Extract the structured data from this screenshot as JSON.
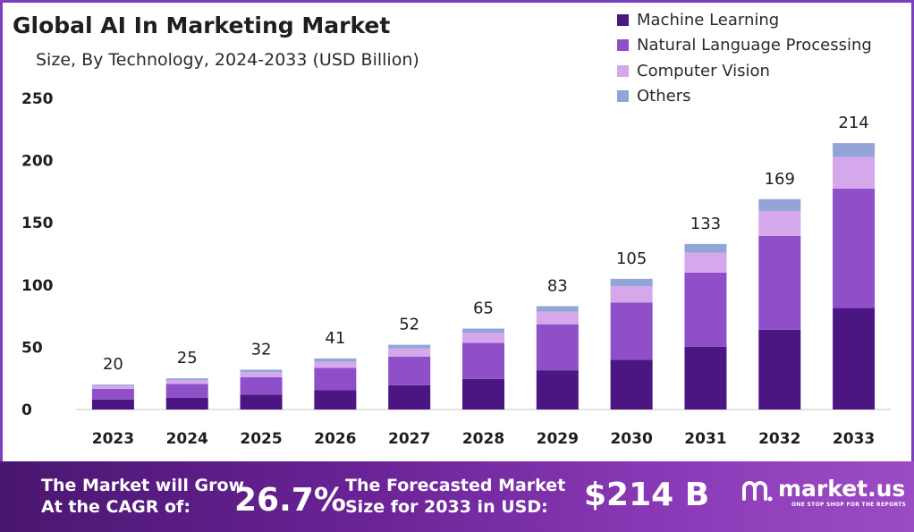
{
  "header": {
    "title": "Global AI In Marketing  Market",
    "subtitle": "Size, By Technology, 2024-2033 (USD Billion)"
  },
  "chart_data": {
    "type": "bar",
    "stacked": true,
    "title": "Global AI In Marketing  Market",
    "subtitle": "Size, By Technology, 2024-2033 (USD Billion)",
    "xlabel": "",
    "ylabel": "",
    "ylim": [
      0,
      250
    ],
    "yticks": [
      0,
      50,
      100,
      150,
      200,
      250
    ],
    "grid": false,
    "legend_position": "top-right",
    "categories": [
      "2023",
      "2024",
      "2025",
      "2026",
      "2027",
      "2028",
      "2029",
      "2030",
      "2031",
      "2032",
      "2033"
    ],
    "totals": [
      20,
      25,
      32,
      41,
      52,
      65,
      83,
      105,
      133,
      169,
      214
    ],
    "series": [
      {
        "name": "Machine Learning",
        "color": "#4b1582",
        "values": [
          8,
          9.5,
          12,
          15.5,
          19.5,
          24.5,
          31.5,
          40,
          50.5,
          64,
          81.5
        ]
      },
      {
        "name": "Natural Language Processing",
        "color": "#8e4fc8",
        "values": [
          8.5,
          11,
          14,
          18,
          23,
          29,
          37,
          46,
          59.5,
          75.5,
          96
        ]
      },
      {
        "name": "Computer Vision",
        "color": "#d4a8ea",
        "values": [
          2.5,
          3.2,
          4,
          5,
          6.5,
          8,
          10,
          13,
          16,
          20,
          25.5
        ]
      },
      {
        "name": "Others",
        "color": "#93a5d8",
        "values": [
          1,
          1.3,
          2,
          2.5,
          3,
          3.5,
          4.5,
          6,
          7,
          9.5,
          11
        ]
      }
    ]
  },
  "footer": {
    "cagr_label_line1": "The Market will Grow",
    "cagr_label_line2": "At the CAGR of:",
    "cagr_value": "26.7%",
    "forecast_label_line1": "The Forecasted Market",
    "forecast_label_line2": "Size for 2033 in USD:",
    "forecast_value": "$214 B",
    "brand_name": "market.us",
    "brand_tagline": "ONE STOP SHOP FOR THE REPORTS",
    "brand_icon": "market-us-logo-icon"
  }
}
